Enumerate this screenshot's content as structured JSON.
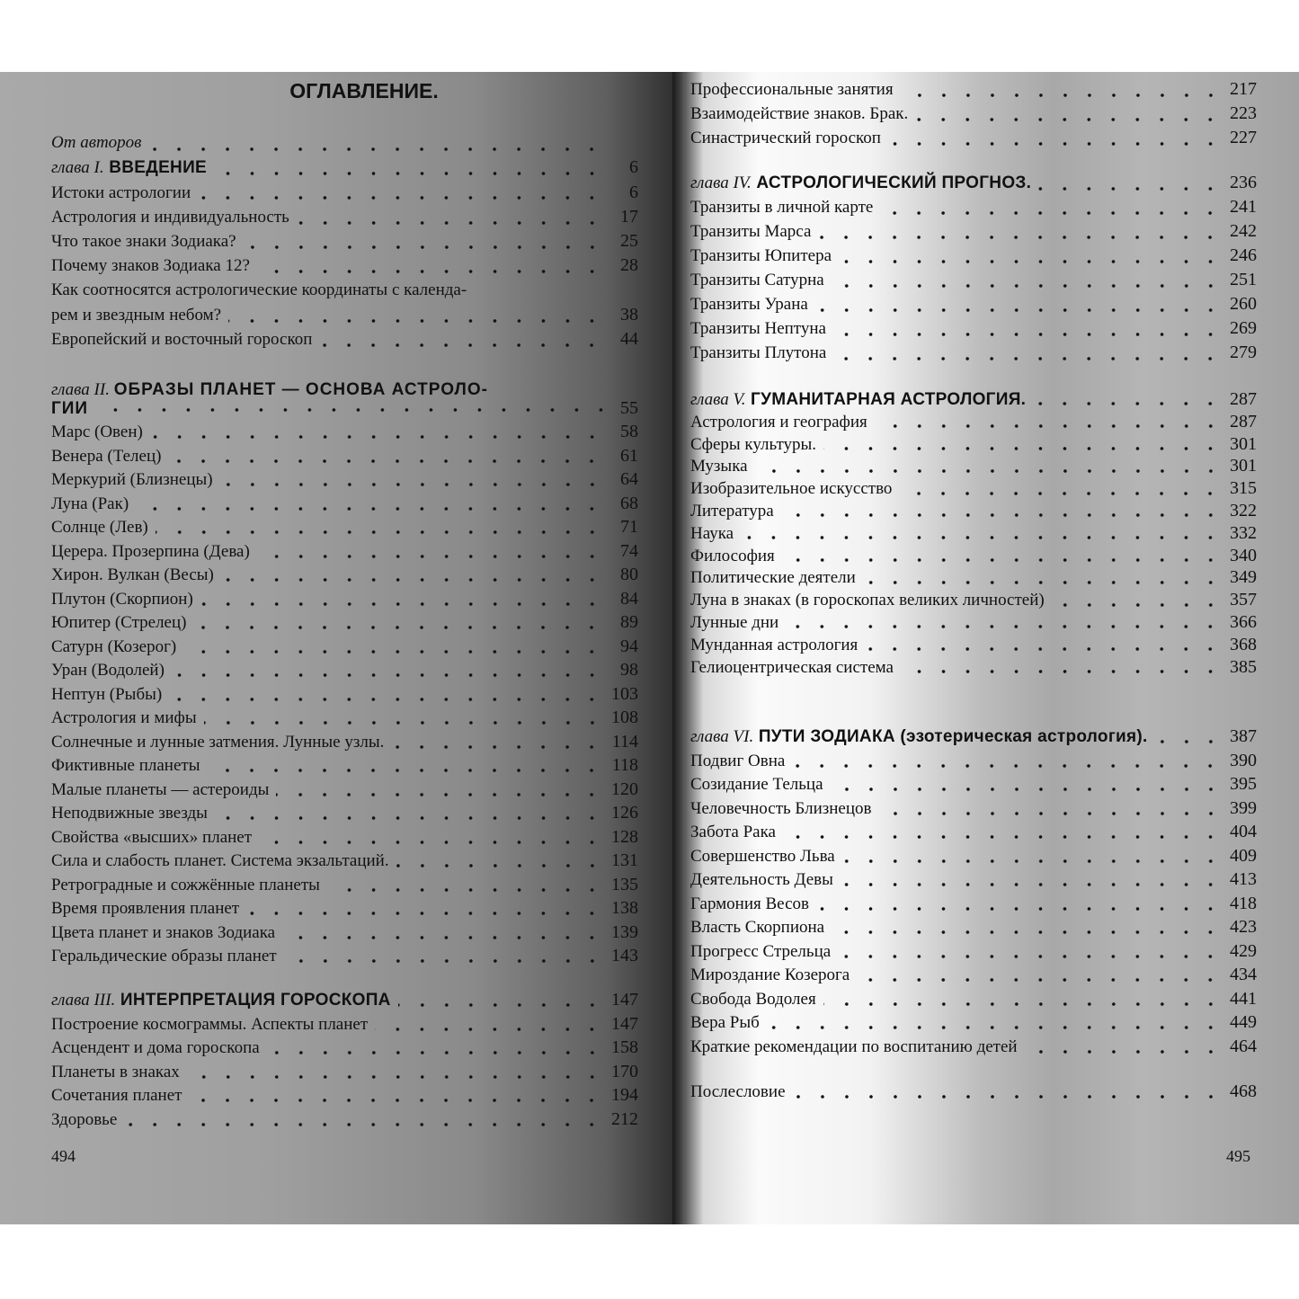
{
  "left_page": {
    "title": "ОГЛАВЛЕНИЕ.",
    "page_number": "494",
    "intro": [
      {
        "text": "От авторов",
        "page": "",
        "italic": true
      },
      {
        "chapter": "глава I.",
        "text": "ВВЕДЕНИЕ",
        "page": "6"
      },
      {
        "text": "Истоки астрологии",
        "page": "6"
      },
      {
        "text": "Астрология и индивидуальность",
        "page": "17"
      },
      {
        "text": "Что такое знаки Зодиака?",
        "page": "25"
      },
      {
        "text": "Почему знаков Зодиака 12?",
        "page": "28"
      },
      {
        "text": "Как соотносятся астрологические координаты с календа-",
        "page": ""
      },
      {
        "text": "рем и звездным небом?",
        "page": "38"
      },
      {
        "text": "Европейский и восточный гороскоп",
        "page": "44"
      }
    ],
    "chapter2": {
      "chapter": "глава II.",
      "title": "ОБРАЗЫ ПЛАНЕТ — ОСНОВА АСТРОЛО-",
      "title_cont": "ГИИ",
      "page": "55"
    },
    "chapter2_items": [
      {
        "text": "Марс (Овен)",
        "page": "58"
      },
      {
        "text": "Венера (Телец)",
        "page": "61"
      },
      {
        "text": "Меркурий (Близнецы)",
        "page": "64"
      },
      {
        "text": "Луна (Рак)",
        "page": "68"
      },
      {
        "text": "Солнце (Лев)",
        "page": "71"
      },
      {
        "text": "Церера. Прозерпина (Дева)",
        "page": "74"
      },
      {
        "text": "Хирон. Вулкан (Весы)",
        "page": "80"
      },
      {
        "text": "Плутон (Скорпион)",
        "page": "84"
      },
      {
        "text": "Юпитер (Стрелец)",
        "page": "89"
      },
      {
        "text": "Сатурн (Козерог)",
        "page": "94"
      },
      {
        "text": "Уран (Водолей)",
        "page": "98"
      },
      {
        "text": "Нептун (Рыбы)",
        "page": "103"
      },
      {
        "text": "Астрология и мифы",
        "page": "108"
      },
      {
        "text": "Солнечные и лунные затмения. Лунные узлы.",
        "page": "114"
      },
      {
        "text": "Фиктивные планеты",
        "page": "118"
      },
      {
        "text": "Малые планеты — астероиды",
        "page": "120"
      },
      {
        "text": "Неподвижные звезды",
        "page": "126"
      },
      {
        "text": "Свойства «высших» планет",
        "page": "128"
      },
      {
        "text": "Сила и слабость планет. Система экзальтаций.",
        "page": "131"
      },
      {
        "text": "Ретроградные и сожжённые планеты",
        "page": "135"
      },
      {
        "text": "Время проявления планет",
        "page": "138"
      },
      {
        "text": "Цвета планет и знаков Зодиака",
        "page": "139"
      },
      {
        "text": "Геральдические образы планет",
        "page": "143"
      }
    ],
    "chapter3": [
      {
        "chapter": "глава III.",
        "text": "ИНТЕРПРЕТАЦИЯ ГОРОСКОПА",
        "page": "147"
      },
      {
        "text": "Построение космограммы. Аспекты планет",
        "page": "147"
      },
      {
        "text": "Асцендент и дома гороскопа",
        "page": "158"
      },
      {
        "text": "Планеты в знаках",
        "page": "170"
      },
      {
        "text": "Сочетания планет",
        "page": "194"
      },
      {
        "text": "Здоровье",
        "page": "212"
      }
    ]
  },
  "right_page": {
    "page_number": "495",
    "chapter3_cont": [
      {
        "text": "Профессиональные занятия",
        "page": "217"
      },
      {
        "text": "Взаимодействие знаков. Брак.",
        "page": "223"
      },
      {
        "text": "Синастрический гороскоп",
        "page": "227"
      }
    ],
    "chapter4": [
      {
        "chapter": "глава IV.",
        "text": "АСТРОЛОГИЧЕСКИЙ ПРОГНОЗ.",
        "page": "236"
      },
      {
        "text": "Транзиты в личной карте",
        "page": "241"
      },
      {
        "text": "Транзиты Марса",
        "page": "242"
      },
      {
        "text": "Транзиты Юпитера",
        "page": "246"
      },
      {
        "text": "Транзиты Сатурна",
        "page": "251"
      },
      {
        "text": "Транзиты Урана",
        "page": "260"
      },
      {
        "text": "Транзиты Нептуна",
        "page": "269"
      },
      {
        "text": "Транзиты Плутона",
        "page": "279"
      }
    ],
    "chapter5": [
      {
        "chapter": "глава V.",
        "text": "ГУМАНИТАРНАЯ АСТРОЛОГИЯ.",
        "page": "287"
      },
      {
        "text": "Астрология и география",
        "page": "287"
      },
      {
        "text": "Сферы культуры.",
        "page": "301"
      },
      {
        "text": "Музыка",
        "page": "301"
      },
      {
        "text": "Изобразительное искусство",
        "page": "315"
      },
      {
        "text": "Литература",
        "page": "322"
      },
      {
        "text": "Наука",
        "page": "332"
      },
      {
        "text": "Философия",
        "page": "340"
      },
      {
        "text": "Политические деятели",
        "page": "349"
      },
      {
        "text": "Луна в знаках (в гороскопах великих личностей)",
        "page": "357"
      },
      {
        "text": "Лунные дни",
        "page": "366"
      },
      {
        "text": "Мунданная астрология",
        "page": "368"
      },
      {
        "text": "Гелиоцентрическая система",
        "page": "385"
      }
    ],
    "chapter6": [
      {
        "chapter": "глава VI.",
        "text": "ПУТИ ЗОДИАКА (эзотерическая астрология).",
        "page": "387"
      },
      {
        "text": "Подвиг Овна",
        "page": "390"
      },
      {
        "text": "Созидание Тельца",
        "page": "395"
      },
      {
        "text": "Человечность Близнецов",
        "page": "399"
      },
      {
        "text": "Забота Рака",
        "page": "404"
      },
      {
        "text": "Совершенство Льва",
        "page": "409"
      },
      {
        "text": "Деятельность Девы",
        "page": "413"
      },
      {
        "text": "Гармония Весов",
        "page": "418"
      },
      {
        "text": "Власть Скорпиона",
        "page": "423"
      },
      {
        "text": "Прогресс Стрельца",
        "page": "429"
      },
      {
        "text": "Мироздание Козерога",
        "page": "434"
      },
      {
        "text": "Свобода Водолея",
        "page": "441"
      },
      {
        "text": "Вера Рыб",
        "page": "449"
      },
      {
        "text": "Краткие рекомендации по воспитанию детей",
        "page": "464"
      }
    ],
    "afterword": [
      {
        "text": "Послесловие",
        "page": "468"
      }
    ]
  }
}
